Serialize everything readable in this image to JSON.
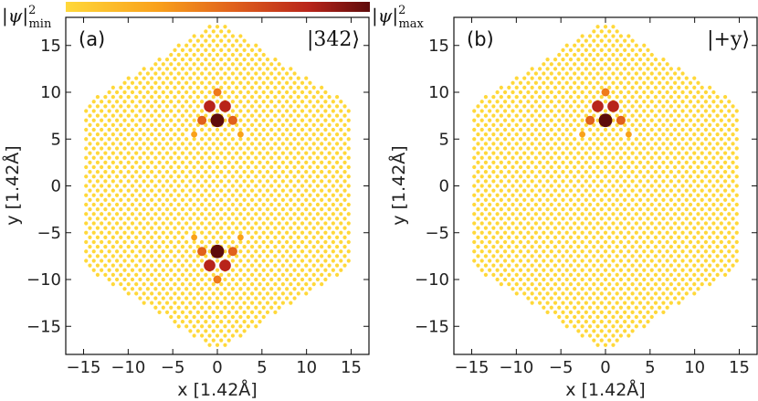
{
  "chart_data": [
    {
      "type": "scatter",
      "panel_label": "(a)",
      "state_label": "|342⟩",
      "xlabel": "x [1.42Å]",
      "ylabel": "y [1.42Å]",
      "xlim": [
        -17,
        17
      ],
      "ylim": [
        -18,
        18
      ],
      "xticks": [
        -15,
        -10,
        -5,
        0,
        5,
        10,
        15
      ],
      "yticks": [
        -15,
        -10,
        -5,
        0,
        5,
        10,
        15
      ],
      "lattice": {
        "type": "hexagonal-flake",
        "corner_y": 17.5,
        "corner_x": 15.0
      },
      "highlighted_sites": [
        {
          "x": 0,
          "y": 7,
          "level": 1.0
        },
        {
          "x": -0.87,
          "y": 8.5,
          "level": 0.8
        },
        {
          "x": 0.87,
          "y": 8.5,
          "level": 0.8
        },
        {
          "x": -1.73,
          "y": 7,
          "level": 0.55
        },
        {
          "x": 1.73,
          "y": 7,
          "level": 0.55
        },
        {
          "x": 0,
          "y": 10,
          "level": 0.45
        },
        {
          "x": -2.6,
          "y": 5.5,
          "level": 0.25
        },
        {
          "x": 2.6,
          "y": 5.5,
          "level": 0.25
        },
        {
          "x": 0,
          "y": -7,
          "level": 1.0
        },
        {
          "x": -0.87,
          "y": -8.5,
          "level": 0.8
        },
        {
          "x": 0.87,
          "y": -8.5,
          "level": 0.8
        },
        {
          "x": -1.73,
          "y": -7,
          "level": 0.55
        },
        {
          "x": 1.73,
          "y": -7,
          "level": 0.55
        },
        {
          "x": 0,
          "y": -10,
          "level": 0.45
        },
        {
          "x": -2.6,
          "y": -5.5,
          "level": 0.25
        },
        {
          "x": 2.6,
          "y": -5.5,
          "level": 0.25
        }
      ]
    },
    {
      "type": "scatter",
      "panel_label": "(b)",
      "state_label": "|+y⟩",
      "xlabel": "x [1.42Å]",
      "ylabel": "y [1.42Å]",
      "xlim": [
        -17,
        17
      ],
      "ylim": [
        -18,
        18
      ],
      "xticks": [
        -15,
        -10,
        -5,
        0,
        5,
        10,
        15
      ],
      "yticks": [
        -15,
        -10,
        -5,
        0,
        5,
        10,
        15
      ],
      "lattice": {
        "type": "hexagonal-flake",
        "corner_y": 17.5,
        "corner_x": 15.0
      },
      "highlighted_sites": [
        {
          "x": 0,
          "y": 7,
          "level": 1.0
        },
        {
          "x": -0.87,
          "y": 8.5,
          "level": 0.8
        },
        {
          "x": 0.87,
          "y": 8.5,
          "level": 0.8
        },
        {
          "x": -1.73,
          "y": 7,
          "level": 0.55
        },
        {
          "x": 1.73,
          "y": 7,
          "level": 0.55
        },
        {
          "x": 0,
          "y": 10,
          "level": 0.45
        },
        {
          "x": -2.6,
          "y": 5.5,
          "level": 0.25
        },
        {
          "x": 2.6,
          "y": 5.5,
          "level": 0.25
        }
      ]
    }
  ],
  "colorbar": {
    "min_label": "|ψ|",
    "min_sub": "min",
    "max_label": "|ψ|",
    "max_sub": "max",
    "sup": "2",
    "colors": [
      "#ffd83a",
      "#f9a11b",
      "#e0611c",
      "#b8241a",
      "#5e0b0b"
    ]
  }
}
